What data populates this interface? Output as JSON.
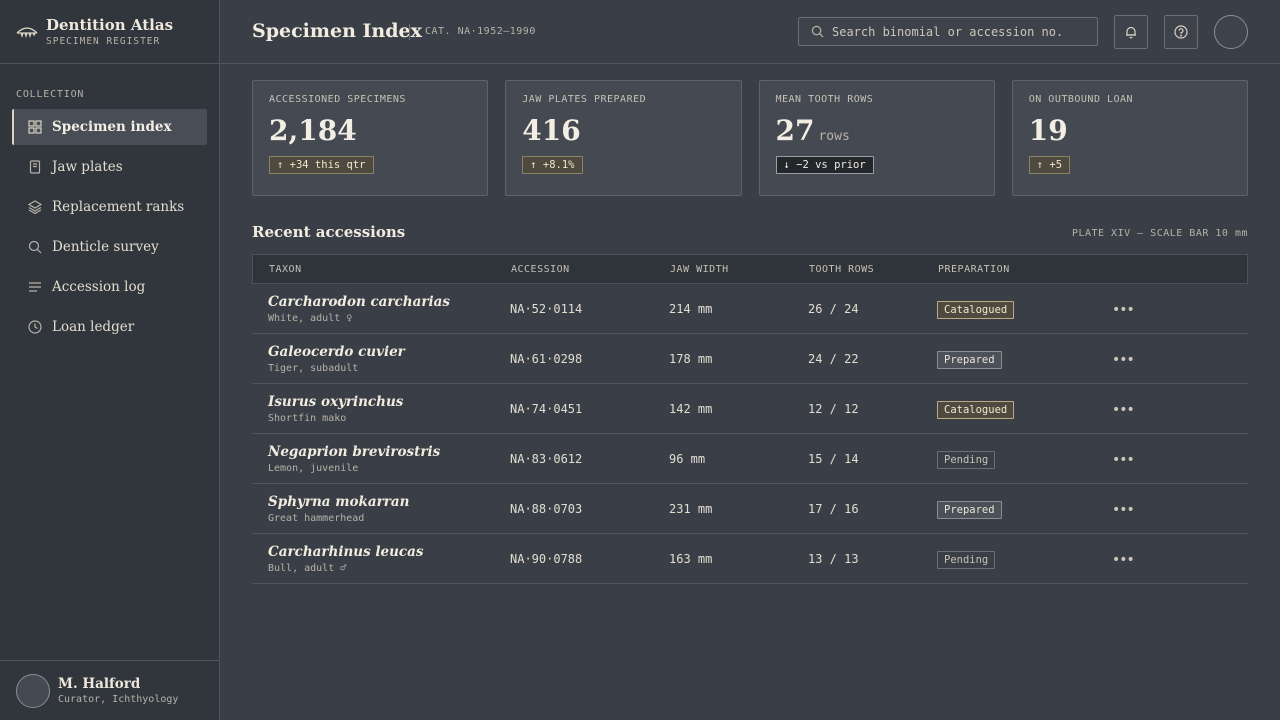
{
  "brand": {
    "title": "Dentition Atlas",
    "subtitle": "SPECIMEN REGISTER",
    "icon": "jaw-icon"
  },
  "sidebar": {
    "section_label": "COLLECTION",
    "items": [
      {
        "label": "Specimen index",
        "icon": "grid-icon",
        "active": true
      },
      {
        "label": "Jaw plates",
        "icon": "book-icon",
        "active": false
      },
      {
        "label": "Replacement ranks",
        "icon": "layers-icon",
        "active": false
      },
      {
        "label": "Denticle survey",
        "icon": "search-icon",
        "active": false
      },
      {
        "label": "Accession log",
        "icon": "list-icon",
        "active": false
      },
      {
        "label": "Loan ledger",
        "icon": "clock-icon",
        "active": false
      }
    ],
    "user": {
      "name": "M. Halford",
      "role": "Curator, Ichthyology"
    }
  },
  "header": {
    "title": "Specimen Index",
    "catalog": "CAT. NA·1952–1990",
    "search_placeholder": "Search binomial or accession no.",
    "search_value": ""
  },
  "stats": [
    {
      "label": "ACCESSIONED SPECIMENS",
      "value": "2,184",
      "unit": "",
      "delta": "↑ +34 this qtr",
      "direction": "up"
    },
    {
      "label": "JAW PLATES PREPARED",
      "value": "416",
      "unit": "",
      "delta": "↑ +8.1%",
      "direction": "up"
    },
    {
      "label": "MEAN TOOTH ROWS",
      "value": "27",
      "unit": "rows",
      "delta": "↓ −2 vs prior",
      "direction": "down"
    },
    {
      "label": "ON OUTBOUND LOAN",
      "value": "19",
      "unit": "",
      "delta": "↑ +5",
      "direction": "up"
    }
  ],
  "recent": {
    "title": "Recent accessions",
    "note": "PLATE XIV — SCALE BAR 10 mm",
    "columns": {
      "taxon": "TAXON",
      "accession": "ACCESSION",
      "jaw_width": "JAW WIDTH",
      "tooth_rows": "TOOTH ROWS",
      "preparation": "PREPARATION"
    },
    "rows": [
      {
        "binomial": "Carcharodon carcharias",
        "common": "White, adult ♀",
        "accession": "NA·52·0114",
        "jaw_width": "214 mm",
        "tooth_rows": "26 / 24",
        "preparation": "Catalogued"
      },
      {
        "binomial": "Galeocerdo cuvier",
        "common": "Tiger, subadult",
        "accession": "NA·61·0298",
        "jaw_width": "178 mm",
        "tooth_rows": "24 / 22",
        "preparation": "Prepared"
      },
      {
        "binomial": "Isurus oxyrinchus",
        "common": "Shortfin mako",
        "accession": "NA·74·0451",
        "jaw_width": "142 mm",
        "tooth_rows": "12 / 12",
        "preparation": "Catalogued"
      },
      {
        "binomial": "Negaprion brevirostris",
        "common": "Lemon, juvenile",
        "accession": "NA·83·0612",
        "jaw_width": "96 mm",
        "tooth_rows": "15 / 14",
        "preparation": "Pending"
      },
      {
        "binomial": "Sphyrna mokarran",
        "common": "Great hammerhead",
        "accession": "NA·88·0703",
        "jaw_width": "231 mm",
        "tooth_rows": "17 / 16",
        "preparation": "Prepared"
      },
      {
        "binomial": "Carcharhinus leucas",
        "common": "Bull, adult ♂",
        "accession": "NA·90·0788",
        "jaw_width": "163 mm",
        "tooth_rows": "13 / 13",
        "preparation": "Pending"
      }
    ],
    "row_action_icon": "more-icon",
    "row_action_glyph": "•••"
  },
  "colors": {
    "background": "#3a3f47",
    "sidebar": "#31353c",
    "accent": "#b8ab84",
    "text": "#e9e4d8"
  }
}
